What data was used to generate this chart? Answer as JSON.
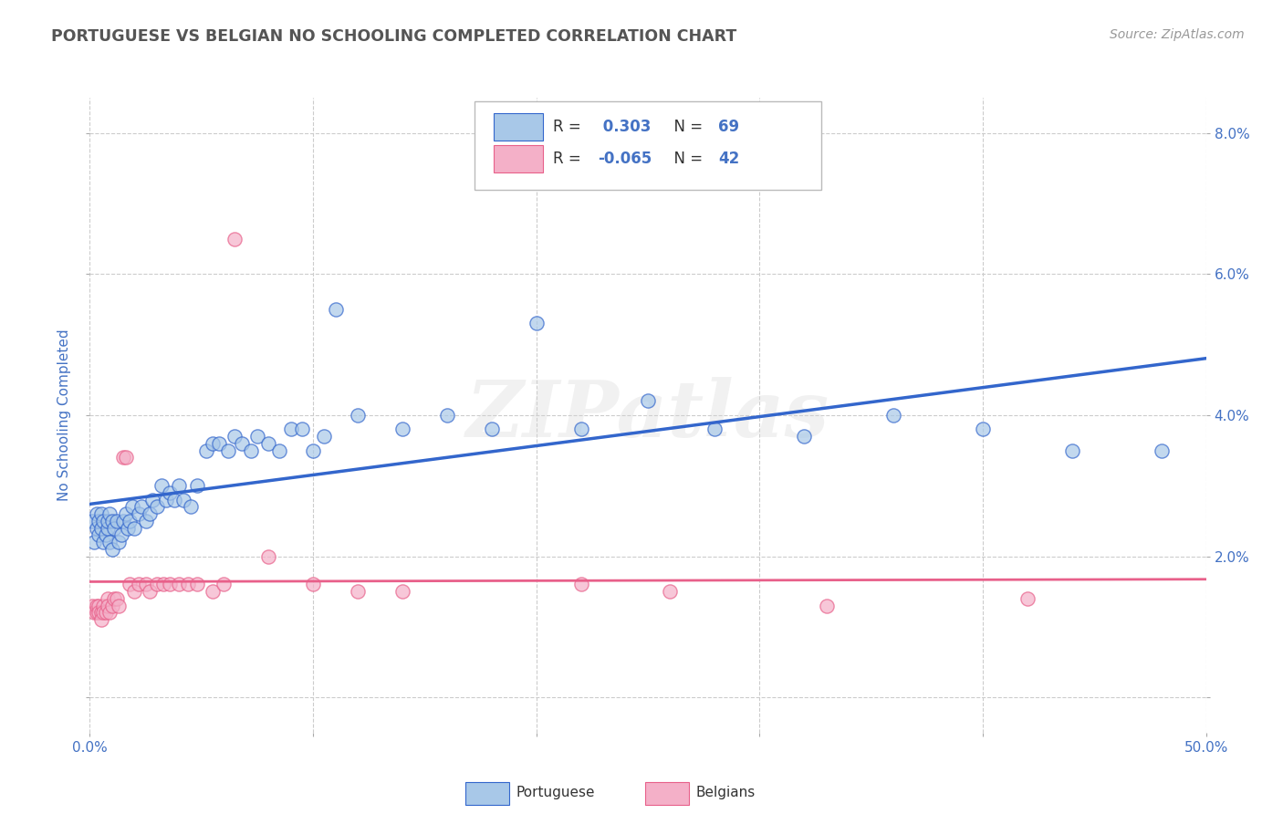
{
  "title": "PORTUGUESE VS BELGIAN NO SCHOOLING COMPLETED CORRELATION CHART",
  "source": "Source: ZipAtlas.com",
  "ylabel": "No Schooling Completed",
  "xlim": [
    0.0,
    0.5
  ],
  "ylim": [
    -0.005,
    0.085
  ],
  "x_ticks": [
    0.0,
    0.1,
    0.2,
    0.3,
    0.4,
    0.5
  ],
  "x_tick_labels_visible": [
    "0.0%",
    "",
    "",
    "",
    "",
    "50.0%"
  ],
  "y_ticks": [
    0.0,
    0.02,
    0.04,
    0.06,
    0.08
  ],
  "y_tick_labels": [
    "",
    "2.0%",
    "4.0%",
    "6.0%",
    "8.0%"
  ],
  "portuguese_color": "#a8c8e8",
  "belgian_color": "#f4b0c8",
  "portuguese_line_color": "#3366cc",
  "belgian_line_color": "#e8608a",
  "title_color": "#555555",
  "source_color": "#999999",
  "axis_label_color": "#4472c4",
  "blue_color": "#4472c4",
  "portuguese_R": 0.303,
  "portuguese_N": 69,
  "belgian_R": -0.065,
  "belgian_N": 42,
  "portuguese_x": [
    0.001,
    0.002,
    0.003,
    0.003,
    0.004,
    0.004,
    0.005,
    0.005,
    0.006,
    0.006,
    0.007,
    0.008,
    0.008,
    0.009,
    0.009,
    0.01,
    0.01,
    0.011,
    0.012,
    0.013,
    0.014,
    0.015,
    0.016,
    0.017,
    0.018,
    0.019,
    0.02,
    0.022,
    0.023,
    0.025,
    0.027,
    0.028,
    0.03,
    0.032,
    0.034,
    0.036,
    0.038,
    0.04,
    0.042,
    0.045,
    0.048,
    0.052,
    0.055,
    0.058,
    0.062,
    0.065,
    0.068,
    0.072,
    0.075,
    0.08,
    0.085,
    0.09,
    0.095,
    0.1,
    0.105,
    0.11,
    0.12,
    0.14,
    0.16,
    0.18,
    0.2,
    0.22,
    0.25,
    0.28,
    0.32,
    0.36,
    0.4,
    0.44,
    0.48
  ],
  "portuguese_y": [
    0.025,
    0.022,
    0.024,
    0.026,
    0.023,
    0.025,
    0.024,
    0.026,
    0.022,
    0.025,
    0.023,
    0.024,
    0.025,
    0.022,
    0.026,
    0.021,
    0.025,
    0.024,
    0.025,
    0.022,
    0.023,
    0.025,
    0.026,
    0.024,
    0.025,
    0.027,
    0.024,
    0.026,
    0.027,
    0.025,
    0.026,
    0.028,
    0.027,
    0.03,
    0.028,
    0.029,
    0.028,
    0.03,
    0.028,
    0.027,
    0.03,
    0.035,
    0.036,
    0.036,
    0.035,
    0.037,
    0.036,
    0.035,
    0.037,
    0.036,
    0.035,
    0.038,
    0.038,
    0.035,
    0.037,
    0.055,
    0.04,
    0.038,
    0.04,
    0.038,
    0.053,
    0.038,
    0.042,
    0.038,
    0.037,
    0.04,
    0.038,
    0.035,
    0.035
  ],
  "belgian_x": [
    0.001,
    0.002,
    0.003,
    0.003,
    0.004,
    0.004,
    0.005,
    0.005,
    0.006,
    0.006,
    0.007,
    0.008,
    0.008,
    0.009,
    0.01,
    0.011,
    0.012,
    0.013,
    0.015,
    0.016,
    0.018,
    0.02,
    0.022,
    0.025,
    0.027,
    0.03,
    0.033,
    0.036,
    0.04,
    0.044,
    0.048,
    0.055,
    0.06,
    0.065,
    0.08,
    0.1,
    0.12,
    0.14,
    0.22,
    0.26,
    0.33,
    0.42
  ],
  "belgian_y": [
    0.013,
    0.012,
    0.012,
    0.013,
    0.013,
    0.012,
    0.012,
    0.011,
    0.013,
    0.012,
    0.012,
    0.014,
    0.013,
    0.012,
    0.013,
    0.014,
    0.014,
    0.013,
    0.034,
    0.034,
    0.016,
    0.015,
    0.016,
    0.016,
    0.015,
    0.016,
    0.016,
    0.016,
    0.016,
    0.016,
    0.016,
    0.015,
    0.016,
    0.065,
    0.02,
    0.016,
    0.015,
    0.015,
    0.016,
    0.015,
    0.013,
    0.014
  ],
  "watermark": "ZIPatlas",
  "background_color": "#ffffff",
  "grid_color": "#cccccc"
}
